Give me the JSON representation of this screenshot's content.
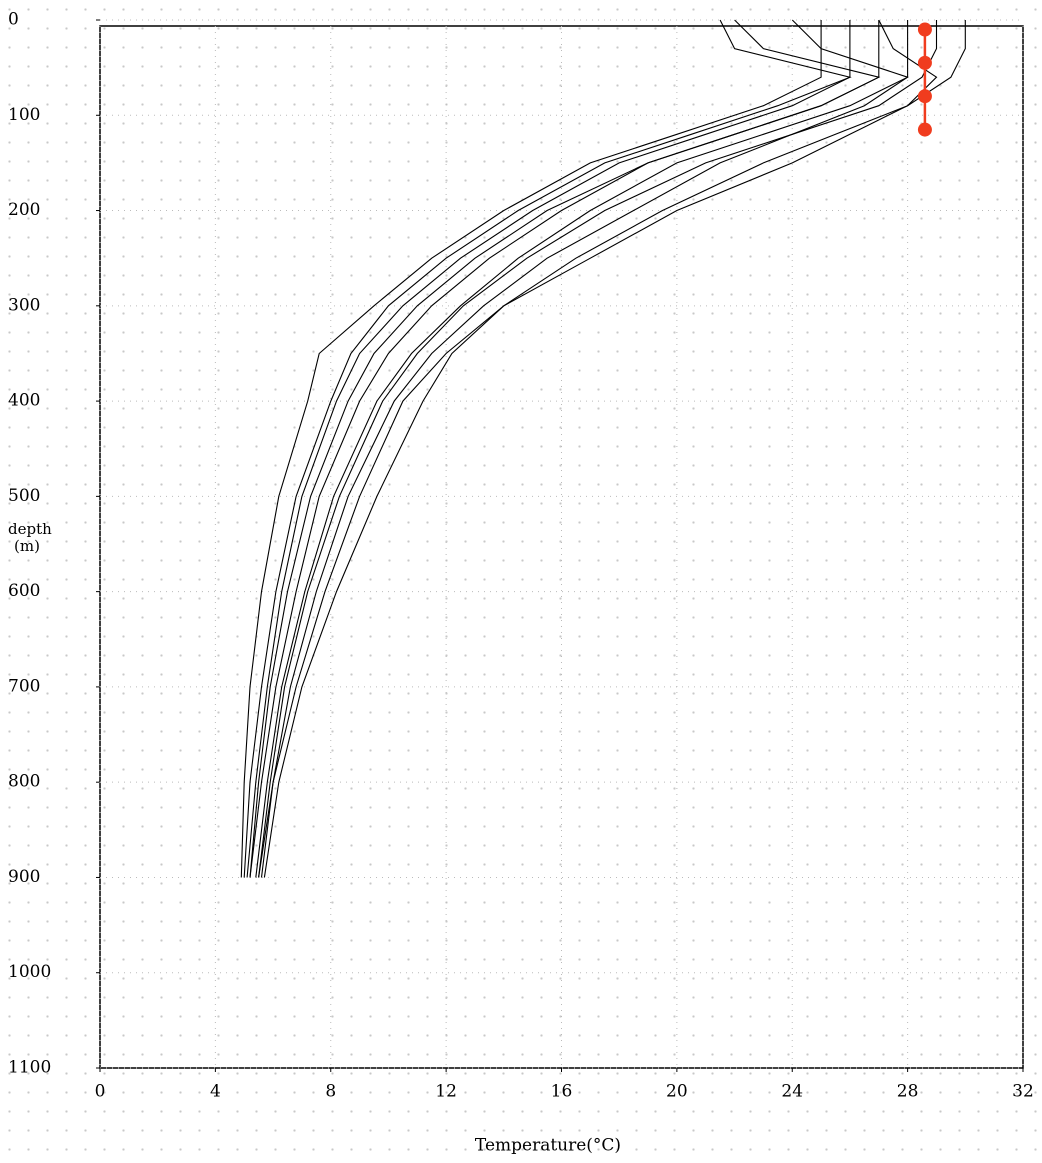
{
  "chart_data": {
    "type": "line",
    "x_label": "Temperature(°C)",
    "y_label": [
      "depth",
      "(m)"
    ],
    "xlim": [
      0,
      32
    ],
    "ylim": [
      0,
      1100
    ],
    "y_inverted": true,
    "xticks": [
      0,
      4,
      8,
      12,
      16,
      20,
      24,
      28,
      32
    ],
    "yticks": [
      0,
      100,
      200,
      300,
      400,
      500,
      600,
      700,
      800,
      900,
      1000,
      1100
    ],
    "grid": true,
    "series": [
      {
        "color": "#000000",
        "marker": false,
        "x": [
          25,
          25,
          25,
          23,
          20,
          17,
          14,
          11.5,
          9.5,
          7.6,
          7.2,
          6.2,
          5.6,
          5.2,
          5.0,
          4.9
        ],
        "y": [
          0,
          30,
          60,
          90,
          120,
          150,
          200,
          250,
          300,
          350,
          400,
          500,
          600,
          700,
          800,
          900
        ]
      },
      {
        "color": "#000000",
        "marker": false,
        "x": [
          26,
          26,
          26,
          24,
          21,
          18,
          15,
          12.5,
          10.5,
          9,
          8.2,
          7,
          6.3,
          5.8,
          5.4,
          5.1
        ],
        "y": [
          0,
          30,
          60,
          90,
          120,
          150,
          200,
          250,
          300,
          350,
          400,
          500,
          600,
          700,
          800,
          900
        ]
      },
      {
        "color": "#000000",
        "marker": false,
        "x": [
          27,
          27,
          27,
          25,
          22,
          19,
          16,
          13.5,
          11.5,
          10,
          9,
          7.6,
          6.8,
          6.1,
          5.6,
          5.2
        ],
        "y": [
          0,
          30,
          60,
          90,
          120,
          150,
          200,
          250,
          300,
          350,
          400,
          500,
          600,
          700,
          800,
          900
        ]
      },
      {
        "color": "#000000",
        "marker": false,
        "x": [
          28,
          28,
          28,
          26,
          23,
          20,
          17,
          14.5,
          12.5,
          10.8,
          9.6,
          8.1,
          7.1,
          6.3,
          5.8,
          5.4
        ],
        "y": [
          0,
          30,
          60,
          90,
          120,
          150,
          200,
          250,
          300,
          350,
          400,
          500,
          600,
          700,
          800,
          900
        ]
      },
      {
        "color": "#000000",
        "marker": false,
        "x": [
          29,
          29,
          28.5,
          27,
          24,
          21.5,
          18.5,
          15.5,
          13.3,
          11.5,
          10.2,
          8.6,
          7.5,
          6.6,
          6.0,
          5.6
        ],
        "y": [
          0,
          30,
          60,
          90,
          120,
          150,
          200,
          250,
          300,
          350,
          400,
          500,
          600,
          700,
          800,
          900
        ]
      },
      {
        "color": "#000000",
        "marker": false,
        "x": [
          30,
          30,
          29.5,
          28,
          25.5,
          23,
          19.5,
          16.5,
          14,
          12.2,
          11.2,
          9.6,
          8.2,
          7.0,
          6.2,
          5.7
        ],
        "y": [
          0,
          30,
          60,
          90,
          120,
          150,
          200,
          250,
          300,
          350,
          400,
          500,
          600,
          700,
          800,
          900
        ]
      },
      {
        "color": "#000000",
        "marker": false,
        "x": [
          22,
          23,
          27,
          25,
          22,
          19,
          15.5,
          13,
          11,
          9.5,
          8.6,
          7.3,
          6.5,
          5.9,
          5.5,
          5.2
        ],
        "y": [
          0,
          30,
          60,
          90,
          120,
          150,
          200,
          250,
          300,
          350,
          400,
          500,
          600,
          700,
          800,
          900
        ]
      },
      {
        "color": "#000000",
        "marker": false,
        "x": [
          21.5,
          22,
          26,
          23.5,
          20.5,
          17.5,
          14.5,
          12,
          10,
          8.7,
          8,
          6.8,
          6.1,
          5.6,
          5.2,
          5.0
        ],
        "y": [
          0,
          30,
          60,
          90,
          120,
          150,
          200,
          250,
          300,
          350,
          400,
          500,
          600,
          700,
          800,
          900
        ]
      },
      {
        "color": "#000000",
        "marker": false,
        "x": [
          24,
          25,
          28,
          26.5,
          24,
          21,
          17.5,
          14.8,
          12.6,
          11,
          9.8,
          8.3,
          7.2,
          6.4,
          5.9,
          5.5
        ],
        "y": [
          0,
          30,
          60,
          90,
          120,
          150,
          200,
          250,
          300,
          350,
          400,
          500,
          600,
          700,
          800,
          900
        ]
      },
      {
        "color": "#000000",
        "marker": false,
        "x": [
          27,
          27.5,
          29,
          28,
          26,
          24,
          20,
          17,
          14,
          12,
          10.5,
          9.0,
          7.8,
          6.8,
          6.0,
          5.5
        ],
        "y": [
          0,
          30,
          60,
          90,
          120,
          150,
          200,
          250,
          300,
          350,
          400,
          500,
          600,
          700,
          800,
          900
        ]
      },
      {
        "color": "#f03c1e",
        "marker": true,
        "x": [
          28.6,
          28.6,
          28.6,
          28.6
        ],
        "y": [
          10,
          45,
          80,
          115
        ]
      }
    ]
  }
}
